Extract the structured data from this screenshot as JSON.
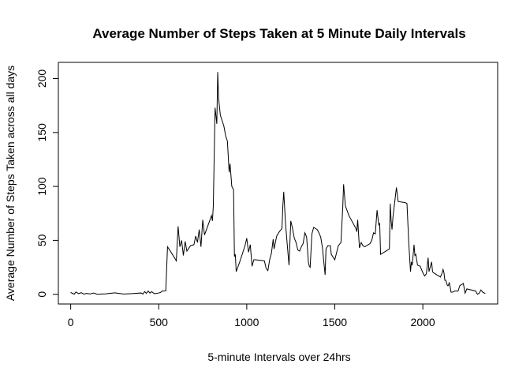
{
  "chart_data": {
    "type": "line",
    "title": "Average Number of Steps Taken at 5 Minute Daily Intervals",
    "xlabel": "5-minute Intervals over 24hrs",
    "ylabel": "Average Number of Steps Taken across all days",
    "xlim": [
      -70,
      2425
    ],
    "ylim": [
      -9,
      215
    ],
    "x_ticks": [
      0,
      500,
      1000,
      1500,
      2000
    ],
    "y_ticks": [
      0,
      50,
      100,
      150,
      200
    ],
    "grid": false,
    "series": [
      {
        "color": "#000000",
        "points": [
          [
            0,
            1.7
          ],
          [
            20,
            0.1
          ],
          [
            30,
            2.1
          ],
          [
            45,
            0.6
          ],
          [
            60,
            1.5
          ],
          [
            75,
            0.2
          ],
          [
            90,
            0.8
          ],
          [
            110,
            0.3
          ],
          [
            130,
            1.1
          ],
          [
            150,
            0.1
          ],
          [
            200,
            0.4
          ],
          [
            250,
            1.3
          ],
          [
            300,
            0.2
          ],
          [
            350,
            0.6
          ],
          [
            400,
            1.2
          ],
          [
            410,
            0.2
          ],
          [
            420,
            2.5
          ],
          [
            430,
            0.8
          ],
          [
            440,
            3.0
          ],
          [
            450,
            1.1
          ],
          [
            460,
            2.4
          ],
          [
            475,
            0.5
          ],
          [
            500,
            1.2
          ],
          [
            510,
            1.6
          ],
          [
            520,
            3.1
          ],
          [
            540,
            3.2
          ],
          [
            550,
            44
          ],
          [
            570,
            39
          ],
          [
            600,
            31
          ],
          [
            610,
            63
          ],
          [
            620,
            44
          ],
          [
            630,
            50
          ],
          [
            640,
            36
          ],
          [
            650,
            49
          ],
          [
            660,
            40
          ],
          [
            680,
            45
          ],
          [
            700,
            46
          ],
          [
            710,
            54
          ],
          [
            720,
            48
          ],
          [
            730,
            60
          ],
          [
            740,
            44
          ],
          [
            750,
            69
          ],
          [
            760,
            55
          ],
          [
            780,
            64
          ],
          [
            800,
            73
          ],
          [
            805,
            68
          ],
          [
            810,
            82
          ],
          [
            820,
            173
          ],
          [
            830,
            158
          ],
          [
            835,
            206
          ],
          [
            840,
            182
          ],
          [
            850,
            166
          ],
          [
            870,
            156
          ],
          [
            880,
            147
          ],
          [
            890,
            142
          ],
          [
            900,
            113
          ],
          [
            905,
            121
          ],
          [
            915,
            100
          ],
          [
            925,
            97
          ],
          [
            930,
            35
          ],
          [
            935,
            37
          ],
          [
            940,
            21
          ],
          [
            960,
            30
          ],
          [
            990,
            45
          ],
          [
            1000,
            52
          ],
          [
            1010,
            39
          ],
          [
            1020,
            46
          ],
          [
            1030,
            26
          ],
          [
            1040,
            32
          ],
          [
            1050,
            32
          ],
          [
            1100,
            31
          ],
          [
            1110,
            24
          ],
          [
            1120,
            22
          ],
          [
            1130,
            32
          ],
          [
            1140,
            38
          ],
          [
            1150,
            51
          ],
          [
            1155,
            42
          ],
          [
            1160,
            46
          ],
          [
            1170,
            54
          ],
          [
            1185,
            58
          ],
          [
            1200,
            61
          ],
          [
            1205,
            82
          ],
          [
            1210,
            95
          ],
          [
            1220,
            66
          ],
          [
            1230,
            46
          ],
          [
            1240,
            27
          ],
          [
            1250,
            68
          ],
          [
            1260,
            61
          ],
          [
            1270,
            52
          ],
          [
            1280,
            48
          ],
          [
            1290,
            41
          ],
          [
            1300,
            40
          ],
          [
            1310,
            44
          ],
          [
            1320,
            47
          ],
          [
            1330,
            57
          ],
          [
            1340,
            53
          ],
          [
            1350,
            30
          ],
          [
            1355,
            26
          ],
          [
            1360,
            25
          ],
          [
            1370,
            56
          ],
          [
            1380,
            62
          ],
          [
            1400,
            60
          ],
          [
            1410,
            57
          ],
          [
            1420,
            53
          ],
          [
            1430,
            43
          ],
          [
            1440,
            26
          ],
          [
            1445,
            18
          ],
          [
            1450,
            42
          ],
          [
            1460,
            45
          ],
          [
            1475,
            45
          ],
          [
            1480,
            37
          ],
          [
            1500,
            32
          ],
          [
            1520,
            45
          ],
          [
            1535,
            48
          ],
          [
            1545,
            80
          ],
          [
            1550,
            102
          ],
          [
            1560,
            82
          ],
          [
            1580,
            73
          ],
          [
            1620,
            61
          ],
          [
            1625,
            58
          ],
          [
            1630,
            69
          ],
          [
            1640,
            43
          ],
          [
            1650,
            48
          ],
          [
            1660,
            45
          ],
          [
            1670,
            44
          ],
          [
            1700,
            47
          ],
          [
            1710,
            50
          ],
          [
            1720,
            57
          ],
          [
            1730,
            56
          ],
          [
            1740,
            78
          ],
          [
            1750,
            64
          ],
          [
            1755,
            66
          ],
          [
            1760,
            37
          ],
          [
            1770,
            38
          ],
          [
            1780,
            39
          ],
          [
            1810,
            42
          ],
          [
            1815,
            84
          ],
          [
            1820,
            68
          ],
          [
            1825,
            60
          ],
          [
            1830,
            71
          ],
          [
            1840,
            85
          ],
          [
            1850,
            99
          ],
          [
            1860,
            86
          ],
          [
            1900,
            85
          ],
          [
            1910,
            84
          ],
          [
            1920,
            48
          ],
          [
            1930,
            21
          ],
          [
            1935,
            30
          ],
          [
            1940,
            27
          ],
          [
            1950,
            46
          ],
          [
            1955,
            36
          ],
          [
            1960,
            37
          ],
          [
            1970,
            27
          ],
          [
            1985,
            26
          ],
          [
            2000,
            20
          ],
          [
            2010,
            17
          ],
          [
            2020,
            19
          ],
          [
            2030,
            34
          ],
          [
            2035,
            21
          ],
          [
            2040,
            24
          ],
          [
            2050,
            30
          ],
          [
            2055,
            21
          ],
          [
            2060,
            20
          ],
          [
            2100,
            16
          ],
          [
            2110,
            20
          ],
          [
            2115,
            23
          ],
          [
            2120,
            20
          ],
          [
            2125,
            13
          ],
          [
            2130,
            13
          ],
          [
            2140,
            8
          ],
          [
            2145,
            8
          ],
          [
            2150,
            11
          ],
          [
            2155,
            7
          ],
          [
            2160,
            2
          ],
          [
            2170,
            2
          ],
          [
            2180,
            3
          ],
          [
            2200,
            3
          ],
          [
            2210,
            8
          ],
          [
            2220,
            9
          ],
          [
            2230,
            10
          ],
          [
            2240,
            1
          ],
          [
            2250,
            5
          ],
          [
            2300,
            3
          ],
          [
            2310,
            0
          ],
          [
            2320,
            1
          ],
          [
            2330,
            4
          ],
          [
            2340,
            2
          ],
          [
            2350,
            1
          ],
          [
            2355,
            1
          ]
        ]
      }
    ]
  }
}
